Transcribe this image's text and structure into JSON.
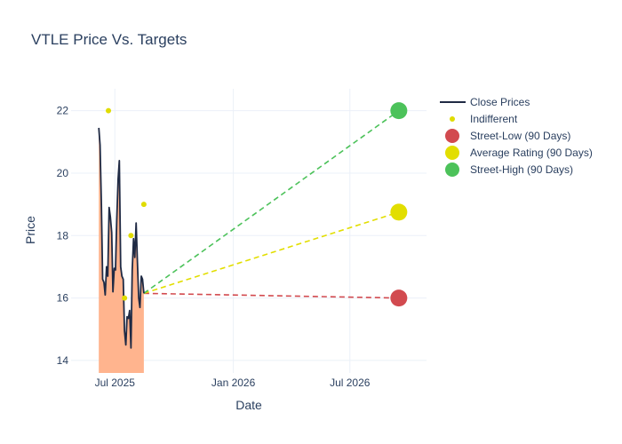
{
  "chart_data": {
    "type": "line",
    "title": "VTLE Price Vs. Targets",
    "xlabel": "Date",
    "ylabel": "Price",
    "x_range": [
      "2025-04-24",
      "2026-10-28"
    ],
    "y_range": [
      13.6,
      22.7
    ],
    "x_ticks": [
      {
        "date": "2025-07-01",
        "label": "Jul 2025"
      },
      {
        "date": "2026-01-01",
        "label": "Jan 2026"
      },
      {
        "date": "2026-07-01",
        "label": "Jul 2026"
      }
    ],
    "y_ticks": [
      14,
      16,
      18,
      20,
      22
    ],
    "grid": true,
    "legend_position": "top-right",
    "close_prices": {
      "name": "Close Prices",
      "color": "#1f2a44",
      "fill_color": "#ffb48e",
      "points": [
        [
          "2025-06-06",
          21.45
        ],
        [
          "2025-06-08",
          20.9
        ],
        [
          "2025-06-10",
          19.0
        ],
        [
          "2025-06-12",
          16.6
        ],
        [
          "2025-06-14",
          16.5
        ],
        [
          "2025-06-16",
          16.1
        ],
        [
          "2025-06-18",
          17.0
        ],
        [
          "2025-06-20",
          16.7
        ],
        [
          "2025-06-22",
          18.9
        ],
        [
          "2025-06-24",
          18.6
        ],
        [
          "2025-06-26",
          18.1
        ],
        [
          "2025-06-28",
          16.2
        ],
        [
          "2025-06-30",
          16.95
        ],
        [
          "2025-07-02",
          16.9
        ],
        [
          "2025-07-04",
          18.5
        ],
        [
          "2025-07-06",
          19.8
        ],
        [
          "2025-07-08",
          20.4
        ],
        [
          "2025-07-10",
          17.0
        ],
        [
          "2025-07-12",
          16.7
        ],
        [
          "2025-07-14",
          16.6
        ],
        [
          "2025-07-16",
          14.95
        ],
        [
          "2025-07-18",
          14.5
        ],
        [
          "2025-07-20",
          15.4
        ],
        [
          "2025-07-22",
          15.35
        ],
        [
          "2025-07-24",
          15.6
        ],
        [
          "2025-07-26",
          14.4
        ],
        [
          "2025-07-28",
          16.9
        ],
        [
          "2025-07-30",
          17.9
        ],
        [
          "2025-08-01",
          17.3
        ],
        [
          "2025-08-03",
          18.4
        ],
        [
          "2025-08-05",
          17.2
        ],
        [
          "2025-08-07",
          16.0
        ],
        [
          "2025-08-09",
          15.7
        ],
        [
          "2025-08-11",
          16.7
        ],
        [
          "2025-08-13",
          16.6
        ],
        [
          "2025-08-15",
          16.15
        ]
      ]
    },
    "indifferent": {
      "name": "Indifferent",
      "color": "#e0dc00",
      "points": [
        [
          "2025-06-21",
          22.0
        ],
        [
          "2025-07-16",
          16.0
        ],
        [
          "2025-07-26",
          18.0
        ],
        [
          "2025-08-15",
          19.0
        ]
      ]
    },
    "targets": {
      "start_date": "2025-08-15",
      "start_price": 16.15,
      "target_date": "2026-09-15",
      "series": [
        {
          "name": "Street-Low (90 Days)",
          "value": 16.0,
          "color": "#d24a4f"
        },
        {
          "name": "Average Rating (90 Days)",
          "value": 18.75,
          "color": "#e2de00"
        },
        {
          "name": "Street-High (90 Days)",
          "value": 22.0,
          "color": "#4cc25a"
        }
      ]
    }
  }
}
